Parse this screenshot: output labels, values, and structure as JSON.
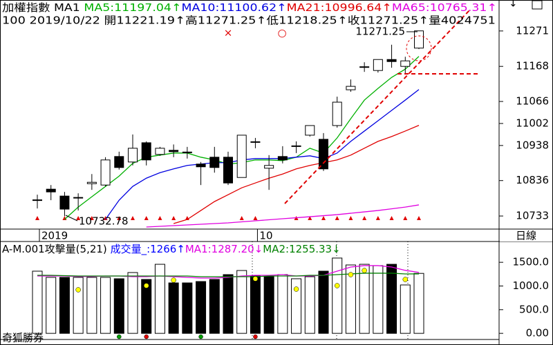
{
  "chart_data": [
    {
      "type": "candlestick",
      "title": "加權指數 MA1 ",
      "subtitle": "100 2019/10/22 開11221.19↑高11271.25↑低11218.25↑收11271.25↑量4024751",
      "categories": [
        "2019",
        null,
        null,
        null,
        null,
        null,
        null,
        null,
        null,
        null,
        null,
        null,
        null,
        null,
        null,
        null,
        "10",
        null,
        null,
        null,
        null,
        null,
        null,
        null,
        null,
        null,
        null,
        null,
        null
      ],
      "open": [
        10779,
        10811,
        10791,
        10785,
        10827,
        10823,
        10906,
        10890,
        10946,
        10912,
        10924,
        10918,
        10884,
        10904,
        10904,
        10845,
        10948,
        10872,
        10906,
        10936,
        10968,
        10956,
        10996,
        11100,
        11166,
        11156,
        11188,
        11168,
        11221.19
      ],
      "high": [
        10795,
        10823,
        10803,
        10799,
        10855,
        10904,
        10920,
        10970,
        10950,
        10934,
        10941,
        10934,
        10890,
        10934,
        10920,
        10968,
        10960,
        10910,
        10936,
        10950,
        10996,
        10974,
        11080,
        11130,
        11180,
        11188,
        11231,
        11196,
        11271.25
      ],
      "low": [
        10755,
        10779,
        10732.78,
        10749,
        10809,
        10819,
        10868,
        10880,
        10880,
        10908,
        10904,
        10900,
        10823,
        10859,
        10823,
        10845,
        10930,
        10809,
        10886,
        10916,
        10964,
        10864,
        10990,
        11094,
        11152,
        11150,
        11164,
        11148,
        11218.25
      ],
      "close": [
        10780,
        10803,
        10753,
        10787,
        10831,
        10896,
        10874,
        10930,
        10896,
        10930,
        10920,
        10919,
        10876,
        10874,
        10829,
        10968,
        10949,
        10880,
        10896,
        10937,
        10996,
        10870,
        11064,
        11110,
        11167,
        11188,
        11182,
        11184,
        11271.25
      ],
      "up_color": "#ffffff",
      "down_color": "#000000",
      "series": [
        {
          "name": "MA5:11197.04↑",
          "color": "#00b000",
          "values": [
            null,
            null,
            10723,
            10759,
            10789,
            10819,
            10849,
            10886,
            10904,
            10910,
            10916,
            10916,
            10904,
            10896,
            10884,
            10888,
            10896,
            10896,
            10894,
            10904,
            10930,
            10916,
            10960,
            11016,
            11070,
            11104,
            11136,
            11160,
            11197.04
          ]
        },
        {
          "name": "MA10:11100.62↑",
          "color": "#0000e0",
          "values": [
            null,
            null,
            null,
            null,
            null,
            10723,
            10779,
            10819,
            10843,
            10859,
            10870,
            10880,
            10884,
            10888,
            10888,
            10896,
            10900,
            10900,
            10900,
            10904,
            10908,
            10900,
            10916,
            10950,
            10980,
            11010,
            11040,
            11070,
            11100.62
          ]
        },
        {
          "name": "MA21:10996.64↑",
          "color": "#e00000",
          "values": [
            null,
            null,
            null,
            null,
            null,
            null,
            null,
            null,
            null,
            null,
            10711,
            10723,
            10749,
            10775,
            10795,
            10815,
            10829,
            10843,
            10855,
            10870,
            10880,
            10888,
            10896,
            10910,
            10930,
            10950,
            10964,
            10980,
            10996.64
          ]
        },
        {
          "name": "MA65:10765.31↑",
          "color": "#e000e0",
          "values": [
            null,
            null,
            null,
            null,
            null,
            null,
            null,
            null,
            10701,
            10703,
            10705,
            10707,
            10709,
            10711,
            10713,
            10716,
            10719,
            10722,
            10725,
            10728,
            10731,
            10734,
            10737,
            10741,
            10745,
            10749,
            10754,
            10759,
            10765.31
          ]
        }
      ],
      "annotations": [
        {
          "text": "11271.25"
        },
        {
          "text": "10732.78"
        },
        {
          "text": "×",
          "color": "#e00000"
        },
        {
          "text": "○",
          "color": "#e00000"
        }
      ],
      "ylim": [
        10699,
        11361
      ],
      "yticks": [
        10733,
        10836,
        10938,
        11002,
        11066,
        11168,
        11271
      ]
    },
    {
      "type": "bar",
      "title": "A-M.001攻擊量(5,21) ",
      "series": [
        {
          "name": "成交量_:1266↑",
          "color": "#0000ff",
          "values": [
            1313,
            1182,
            1182,
            1182,
            1182,
            1182,
            1153,
            1284,
            1138,
            1458,
            1065,
            1065,
            1094,
            1138,
            1240,
            1327,
            1211,
            1196,
            1240,
            1153,
            1196,
            1313,
            1590,
            1444,
            1458,
            1429,
            1458,
            1022,
            1266
          ]
        },
        {
          "name": "MA1:1287.20↓",
          "color": "#e000e0",
          "values": [
            1211,
            1211,
            1211,
            1200,
            1200,
            1211,
            1211,
            1196,
            1196,
            1211,
            1196,
            1182,
            1167,
            1167,
            1182,
            1211,
            1225,
            1225,
            1240,
            1211,
            1211,
            1225,
            1313,
            1400,
            1430,
            1430,
            1400,
            1330,
            1287.2
          ]
        },
        {
          "name": "MA2:1255.33↓",
          "color": "#008000",
          "values": [
            1225,
            1225,
            1218,
            1211,
            1211,
            1211,
            1211,
            1211,
            1211,
            1211,
            1211,
            1211,
            1196,
            1196,
            1196,
            1196,
            1196,
            1211,
            1211,
            1211,
            1225,
            1225,
            1240,
            1255,
            1270,
            1270,
            1270,
            1255,
            1255.33
          ]
        }
      ],
      "dots": {
        "color": "#ffff00",
        "values": [
          null,
          null,
          null,
          920,
          null,
          null,
          null,
          null,
          1007,
          null,
          1123,
          null,
          null,
          null,
          null,
          null,
          1153,
          null,
          null,
          934,
          null,
          null,
          1007,
          1240,
          1327,
          null,
          null,
          1138,
          null
        ]
      },
      "ylim": [
        -100,
        1910
      ],
      "yticks": [
        {
          "value": 0,
          "label": "0.00"
        },
        {
          "value": 500,
          "label": "500.0"
        },
        {
          "value": 1000,
          "label": "1000.0"
        },
        {
          "value": 1500,
          "label": "1500.0"
        }
      ]
    }
  ],
  "period": "日線",
  "brand": "奇狐勝券"
}
